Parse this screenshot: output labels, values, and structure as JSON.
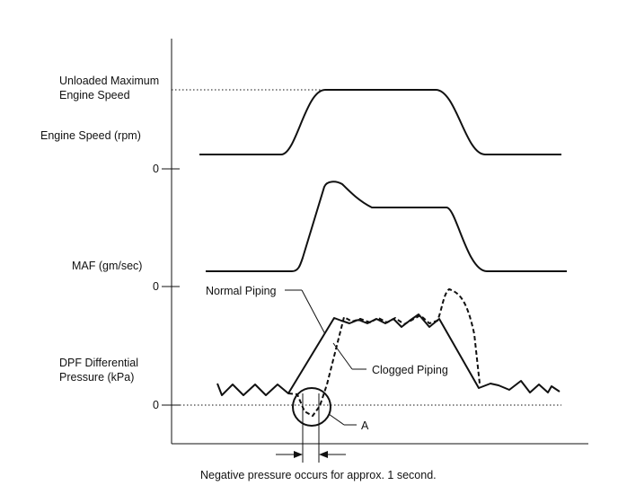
{
  "chart_data": {
    "type": "line",
    "x_axis": {
      "label": "",
      "ticks": []
    },
    "panels": [
      {
        "id": "engine-speed",
        "ylabel": "Engine Speed (rpm)",
        "zero_label": "0",
        "reference_label_lines": [
          "Unloaded Maximum",
          "Engine Speed"
        ],
        "series": [
          {
            "name": "",
            "style": "solid",
            "shape": "low idle, smooth rise to a flat maximum plateau, smooth fall back to idle"
          }
        ]
      },
      {
        "id": "maf",
        "ylabel": "MAF (gm/sec)",
        "zero_label": "0",
        "series": [
          {
            "name": "",
            "style": "solid",
            "shape": "low, sharp rise to a peak, settles to a plateau, smooth fall back to low"
          }
        ]
      },
      {
        "id": "dpf",
        "ylabel_lines": [
          "DPF Differential",
          "Pressure (kPa)"
        ],
        "zero_label": "0",
        "series": [
          {
            "name": "Normal Piping",
            "style": "solid",
            "shape": "noisy near zero, rises to noisy plateau, falls back near zero"
          },
          {
            "name": "Clogged Piping",
            "style": "dashed",
            "shape": "dips below zero for about 1 second, rises later to noisy plateau with a spike, falls back"
          }
        ],
        "annotations": [
          {
            "label": "A",
            "marks": "circle around the negative pressure dip"
          },
          {
            "label": "Negative pressure occurs for approx. 1 second.",
            "marks": "arrows bracketing the dip width"
          }
        ]
      }
    ],
    "grid": false,
    "legend": "inline labels with leader lines",
    "colors": {
      "lines": "#111111",
      "background": "#ffffff"
    }
  }
}
